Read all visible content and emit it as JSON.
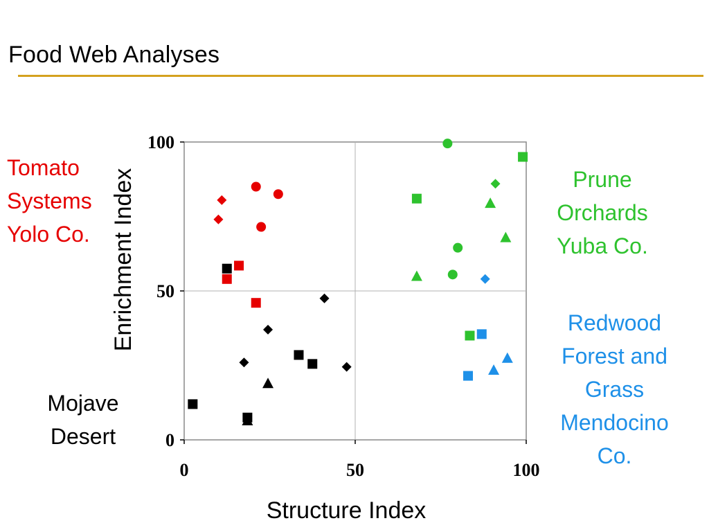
{
  "header": {
    "title": "Food Web Analyses"
  },
  "groups": {
    "tomato": {
      "lines": [
        "Tomato",
        "Systems",
        "Yolo Co."
      ],
      "color": "#e60000"
    },
    "prune": {
      "lines": [
        "Prune",
        "Orchards",
        "Yuba Co."
      ],
      "color": "#2ec22e"
    },
    "redwood": {
      "lines": [
        "Redwood",
        "Forest and",
        "Grass",
        "Mendocino",
        "Co."
      ],
      "color": "#1e90e8"
    },
    "mojave": {
      "lines": [
        "Mojave",
        "Desert"
      ],
      "color": "#000000"
    }
  },
  "chart_data": {
    "type": "scatter",
    "title": "Food Web Analyses",
    "xlabel": "Structure Index",
    "ylabel": "Enrichment Index",
    "xlim": [
      0,
      100
    ],
    "ylim": [
      0,
      100
    ],
    "xticks": [
      "0",
      "50",
      "100"
    ],
    "yticks": [
      "0",
      "50",
      "100"
    ],
    "grid": true,
    "series": [
      {
        "name": "Tomato Systems Yolo Co.",
        "color": "#e60000",
        "points": [
          {
            "x": 21,
            "y": 85,
            "marker": "circle"
          },
          {
            "x": 27.5,
            "y": 82.5,
            "marker": "circle"
          },
          {
            "x": 22.5,
            "y": 71.5,
            "marker": "circle"
          },
          {
            "x": 11,
            "y": 80.5,
            "marker": "diamond"
          },
          {
            "x": 10,
            "y": 74,
            "marker": "diamond"
          },
          {
            "x": 16,
            "y": 58.5,
            "marker": "square"
          },
          {
            "x": 12.5,
            "y": 54,
            "marker": "square"
          },
          {
            "x": 21,
            "y": 46,
            "marker": "square"
          }
        ]
      },
      {
        "name": "Prune Orchards Yuba Co.",
        "color": "#2ec22e",
        "points": [
          {
            "x": 77,
            "y": 99.5,
            "marker": "circle"
          },
          {
            "x": 99,
            "y": 95,
            "marker": "square"
          },
          {
            "x": 91,
            "y": 86,
            "marker": "diamond"
          },
          {
            "x": 68,
            "y": 81,
            "marker": "square"
          },
          {
            "x": 89.5,
            "y": 79.5,
            "marker": "triangle"
          },
          {
            "x": 94,
            "y": 68,
            "marker": "triangle"
          },
          {
            "x": 80,
            "y": 64.5,
            "marker": "circle"
          },
          {
            "x": 68,
            "y": 55,
            "marker": "triangle"
          },
          {
            "x": 78.5,
            "y": 55.5,
            "marker": "circle"
          },
          {
            "x": 83.5,
            "y": 35,
            "marker": "square"
          }
        ]
      },
      {
        "name": "Redwood Forest and Grass Mendocino Co.",
        "color": "#1e90e8",
        "points": [
          {
            "x": 88,
            "y": 54,
            "marker": "diamond"
          },
          {
            "x": 87,
            "y": 35.5,
            "marker": "square"
          },
          {
            "x": 94.5,
            "y": 27.5,
            "marker": "triangle"
          },
          {
            "x": 90.5,
            "y": 23.5,
            "marker": "triangle"
          },
          {
            "x": 83,
            "y": 21.5,
            "marker": "square"
          }
        ]
      },
      {
        "name": "Mojave Desert",
        "color": "#000000",
        "points": [
          {
            "x": 12.5,
            "y": 57.5,
            "marker": "square"
          },
          {
            "x": 41,
            "y": 47.5,
            "marker": "diamond"
          },
          {
            "x": 24.5,
            "y": 37,
            "marker": "diamond"
          },
          {
            "x": 33.5,
            "y": 28.5,
            "marker": "square"
          },
          {
            "x": 37.5,
            "y": 25.5,
            "marker": "square"
          },
          {
            "x": 17.5,
            "y": 26,
            "marker": "diamond"
          },
          {
            "x": 47.5,
            "y": 24.5,
            "marker": "diamond"
          },
          {
            "x": 24.5,
            "y": 19,
            "marker": "triangle"
          },
          {
            "x": 2.5,
            "y": 12,
            "marker": "square"
          },
          {
            "x": 18.5,
            "y": 7.5,
            "marker": "square"
          },
          {
            "x": 18.5,
            "y": 6.5,
            "marker": "triangle"
          }
        ]
      }
    ]
  }
}
